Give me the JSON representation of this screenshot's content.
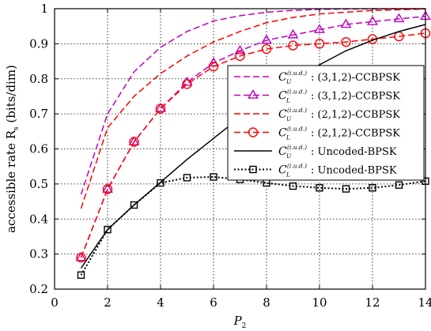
{
  "chart_data": {
    "type": "line",
    "xlabel": "P",
    "xlabel_sub": "2",
    "ylabel": "accessible rate R",
    "ylabel_sub": "s",
    "ylabel_unit": " (bits/dim)",
    "xlim": [
      0,
      14
    ],
    "ylim": [
      0.2,
      1.0
    ],
    "xticks": [
      0,
      2,
      4,
      6,
      8,
      10,
      12,
      14
    ],
    "yticks": [
      0.2,
      0.3,
      0.4,
      0.5,
      0.6,
      0.7,
      0.8,
      0.9,
      1.0
    ],
    "xtick_labels": [
      "0",
      "2",
      "4",
      "6",
      "8",
      "10",
      "12",
      "14"
    ],
    "ytick_labels": [
      "0.2",
      "0.3",
      "0.4",
      "0.5",
      "0.6",
      "0.7",
      "0.8",
      "0.9",
      "1"
    ],
    "grid": true,
    "legend_position": "right-center",
    "series": [
      {
        "legend_c": "C",
        "legend_sub": "U",
        "legend_sup": "(i.u.d.)",
        "legend_text": ": (3,1,2)-CCBPSK",
        "color": "#c000c0",
        "dash": "8,4",
        "marker": "none",
        "x": [
          1,
          2,
          3,
          4,
          5,
          6,
          7,
          8,
          9,
          10,
          11,
          12,
          13,
          14
        ],
        "y": [
          0.47,
          0.7,
          0.82,
          0.89,
          0.935,
          0.965,
          0.98,
          0.99,
          0.995,
          0.998,
          0.999,
          1.0,
          1.0,
          1.0
        ]
      },
      {
        "legend_c": "C",
        "legend_sub": "L",
        "legend_sup": "(i.u.d.)",
        "legend_text": ": (3,1,2)-CCBPSK",
        "color": "#c000c0",
        "dash": "8,4",
        "marker": "triangle",
        "x": [
          1,
          2,
          3,
          4,
          5,
          6,
          7,
          8,
          9,
          10,
          11,
          12,
          13,
          14
        ],
        "y": [
          0.29,
          0.485,
          0.62,
          0.715,
          0.79,
          0.845,
          0.88,
          0.91,
          0.925,
          0.94,
          0.955,
          0.963,
          0.971,
          0.978
        ]
      },
      {
        "legend_c": "C",
        "legend_sub": "U",
        "legend_sup": "(i.u.d.)",
        "legend_text": ": (2,1,2)-CCBPSK",
        "color": "#ff0000",
        "dash": "8,4",
        "marker": "none",
        "x": [
          1,
          2,
          3,
          4,
          5,
          6,
          7,
          8,
          9,
          10,
          11,
          12,
          13,
          14
        ],
        "y": [
          0.43,
          0.66,
          0.75,
          0.815,
          0.865,
          0.905,
          0.935,
          0.96,
          0.975,
          0.985,
          0.99,
          0.995,
          0.997,
          0.999
        ]
      },
      {
        "legend_c": "C",
        "legend_sub": "L",
        "legend_sup": "(i.u.d.)",
        "legend_text": ": (2,1,2)-CCBPSK",
        "color": "#ff0000",
        "dash": "8,4",
        "marker": "circle",
        "x": [
          1,
          2,
          3,
          4,
          5,
          6,
          7,
          8,
          9,
          10,
          11,
          12,
          13,
          14
        ],
        "y": [
          0.29,
          0.485,
          0.62,
          0.715,
          0.785,
          0.835,
          0.865,
          0.885,
          0.895,
          0.9,
          0.905,
          0.913,
          0.921,
          0.93
        ]
      },
      {
        "legend_c": "C",
        "legend_sub": "U",
        "legend_sup": "(i.u.d.)",
        "legend_text": ": Uncoded-BPSK",
        "color": "#000000",
        "dash": "",
        "marker": "none",
        "x": [
          1,
          2,
          3,
          4,
          5,
          6,
          7,
          8,
          9,
          10,
          11,
          12,
          13,
          14
        ],
        "y": [
          0.26,
          0.37,
          0.44,
          0.505,
          0.57,
          0.63,
          0.69,
          0.745,
          0.795,
          0.84,
          0.88,
          0.91,
          0.935,
          0.955
        ]
      },
      {
        "legend_c": "C",
        "legend_sub": "L",
        "legend_sup": "(i.u.d.)",
        "legend_text": ": Uncoded-BPSK",
        "color": "#000000",
        "dash": "2,2.5",
        "marker": "square",
        "x": [
          1,
          2,
          3,
          4,
          5,
          6,
          7,
          8,
          9,
          10,
          11,
          12,
          13,
          14
        ],
        "y": [
          0.24,
          0.37,
          0.44,
          0.503,
          0.518,
          0.52,
          0.513,
          0.503,
          0.494,
          0.489,
          0.486,
          0.489,
          0.497,
          0.508
        ]
      }
    ]
  }
}
